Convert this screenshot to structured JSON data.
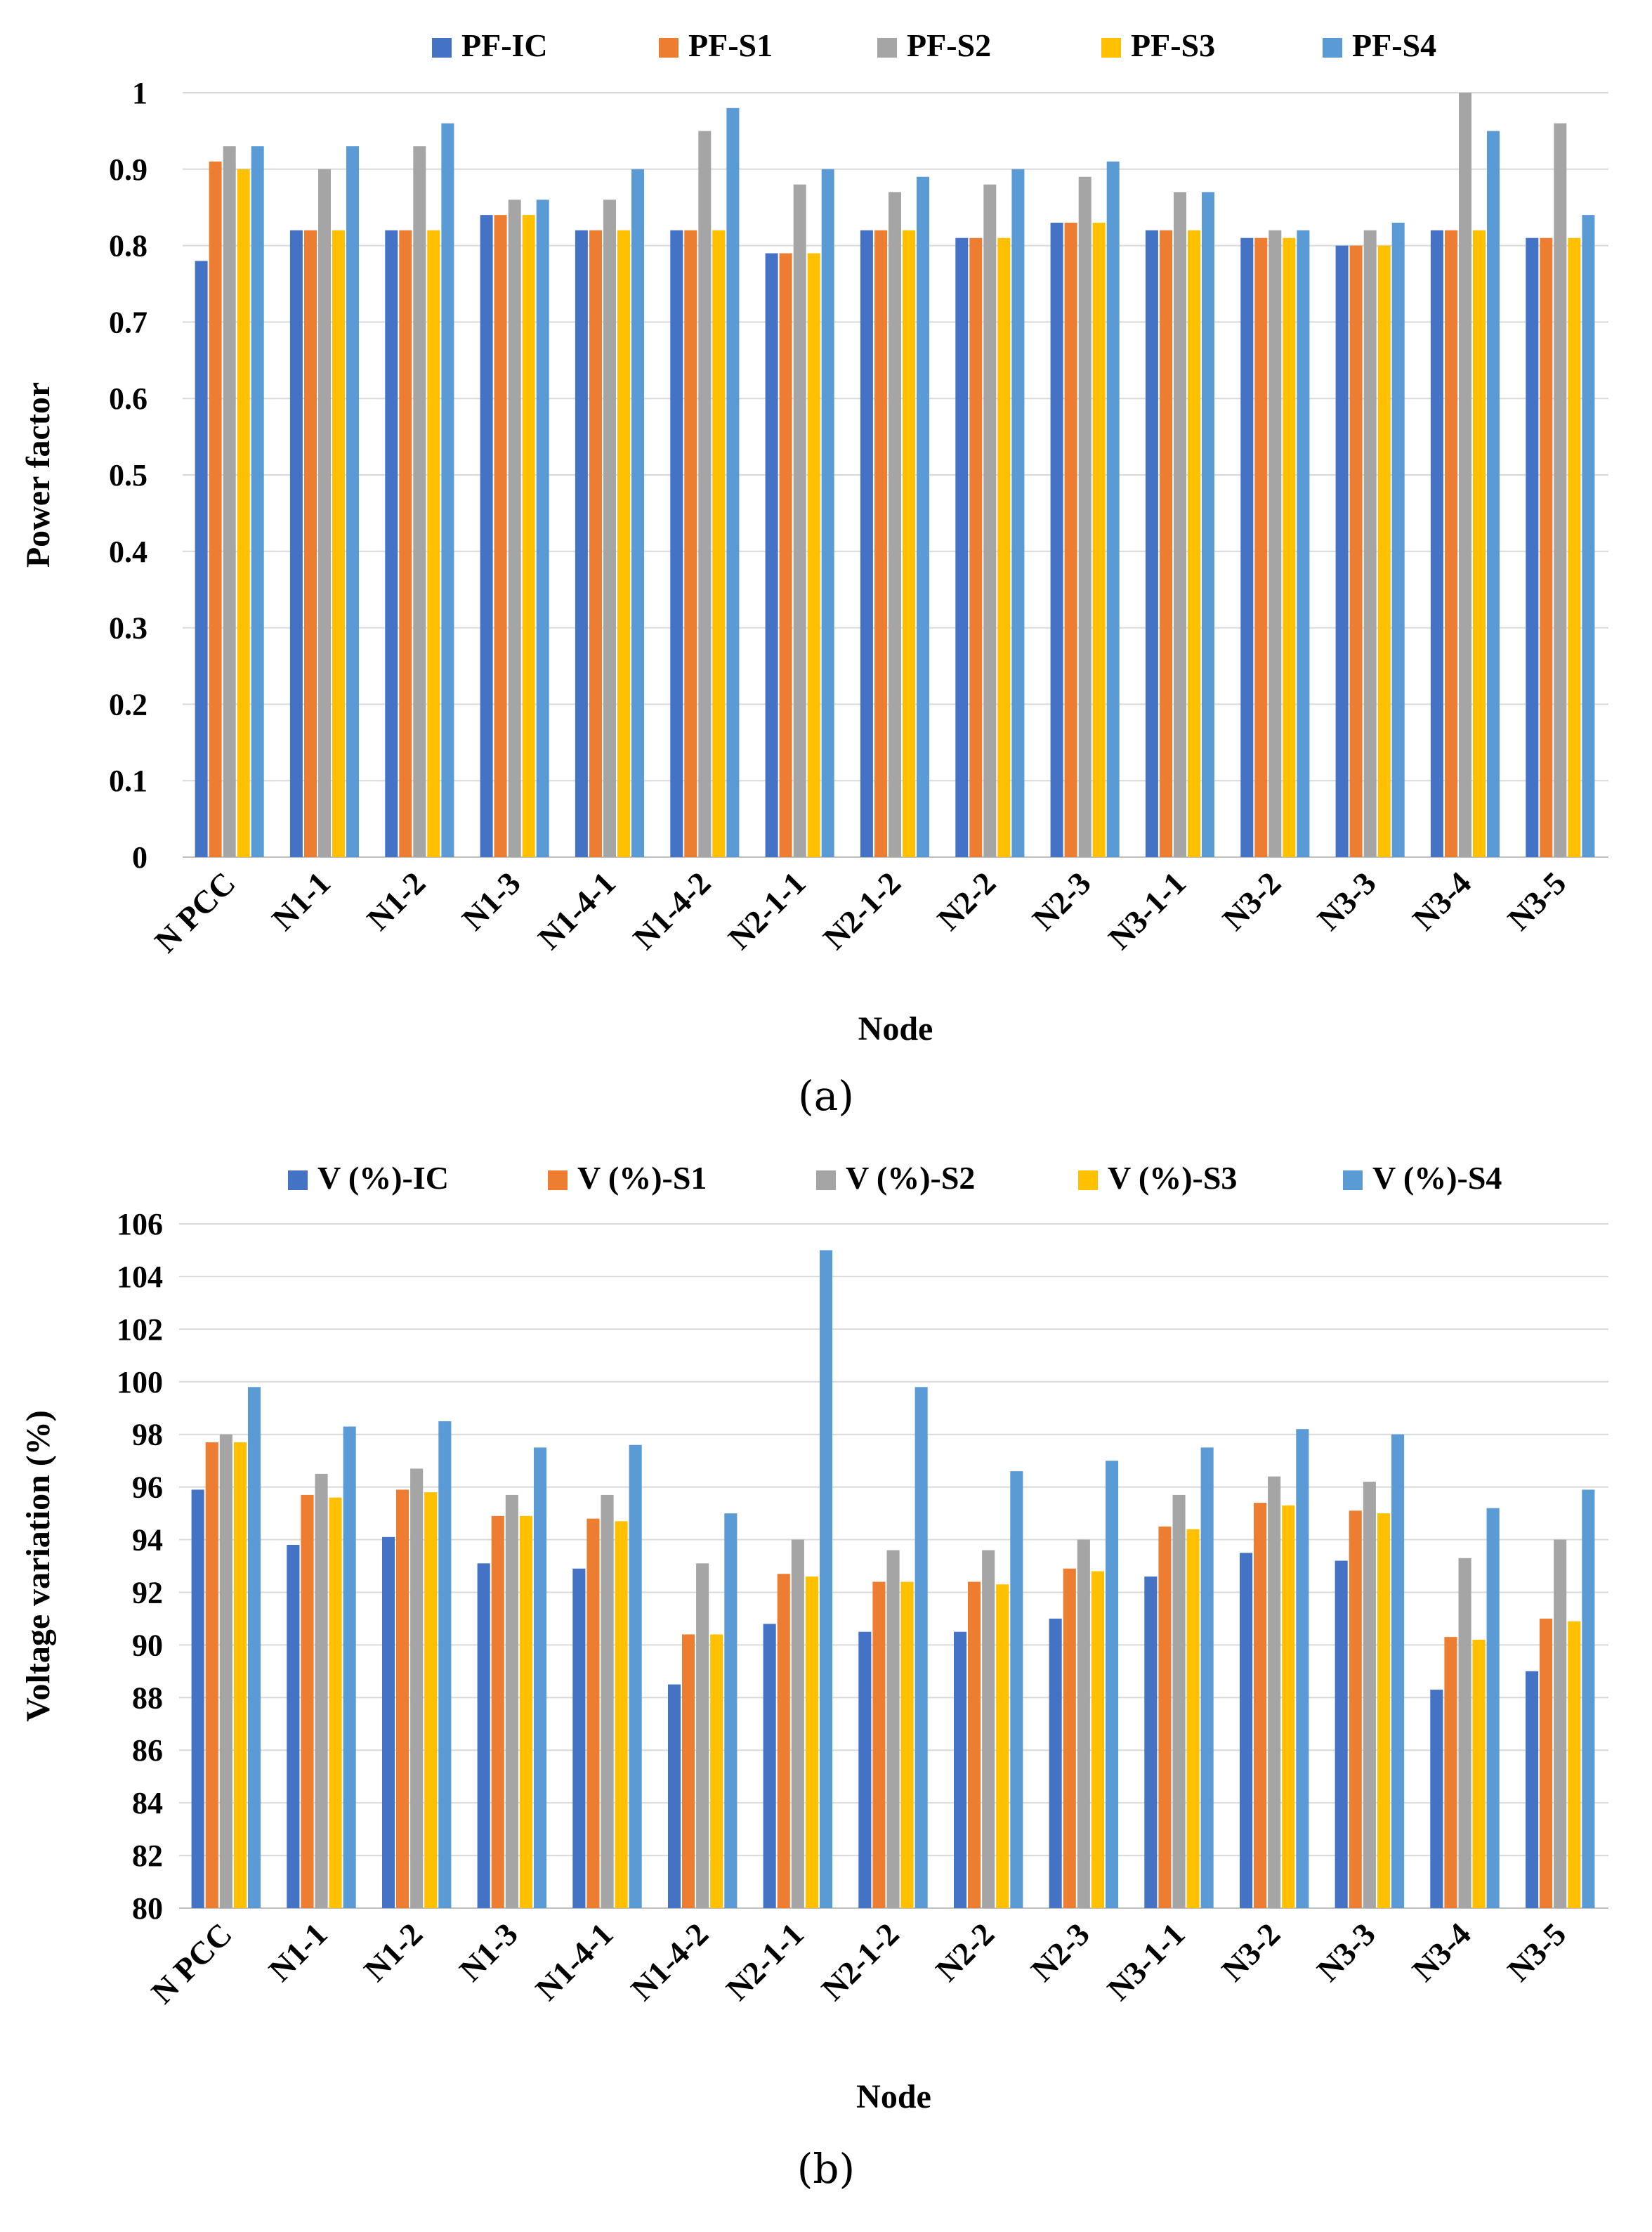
{
  "colors": [
    "#4472C4",
    "#ED7D31",
    "#A5A5A5",
    "#FFC000",
    "#5B9BD5"
  ],
  "chart_data": [
    {
      "type": "bar",
      "panel_label": "(a)",
      "xlabel": "Node",
      "ylabel": "Power factor",
      "ylim": [
        0,
        1
      ],
      "ytick_step": 0.1,
      "yticks": [
        "0",
        "0.1",
        "0.2",
        "0.3",
        "0.4",
        "0.5",
        "0.6",
        "0.7",
        "0.8",
        "0.9",
        "1"
      ],
      "grid": true,
      "legend_position": "top",
      "categories": [
        "N PCC",
        "N1-1",
        "N1-2",
        "N1-3",
        "N1-4-1",
        "N1-4-2",
        "N2-1-1",
        "N2-1-2",
        "N2-2",
        "N2-3",
        "N3-1-1",
        "N3-2",
        "N3-3",
        "N3-4",
        "N3-5"
      ],
      "series": [
        {
          "name": "PF-IC",
          "values": [
            0.78,
            0.82,
            0.82,
            0.84,
            0.82,
            0.82,
            0.79,
            0.82,
            0.81,
            0.83,
            0.82,
            0.81,
            0.8,
            0.82,
            0.81
          ]
        },
        {
          "name": "PF-S1",
          "values": [
            0.91,
            0.82,
            0.82,
            0.84,
            0.82,
            0.82,
            0.79,
            0.82,
            0.81,
            0.83,
            0.82,
            0.81,
            0.8,
            0.82,
            0.81
          ]
        },
        {
          "name": "PF-S2",
          "values": [
            0.93,
            0.9,
            0.93,
            0.86,
            0.86,
            0.95,
            0.88,
            0.87,
            0.88,
            0.89,
            0.87,
            0.82,
            0.82,
            1.0,
            0.96
          ]
        },
        {
          "name": "PF-S3",
          "values": [
            0.9,
            0.82,
            0.82,
            0.84,
            0.82,
            0.82,
            0.79,
            0.82,
            0.81,
            0.83,
            0.82,
            0.81,
            0.8,
            0.82,
            0.81
          ]
        },
        {
          "name": "PF-S4",
          "values": [
            0.93,
            0.93,
            0.96,
            0.86,
            0.9,
            0.98,
            0.9,
            0.89,
            0.9,
            0.91,
            0.87,
            0.82,
            0.83,
            0.95,
            0.84
          ]
        }
      ]
    },
    {
      "type": "bar",
      "panel_label": "(b)",
      "xlabel": "Node",
      "ylabel": "Voltage variation (%)",
      "ylim": [
        80,
        106
      ],
      "ytick_step": 2,
      "yticks": [
        "80",
        "82",
        "84",
        "86",
        "88",
        "90",
        "92",
        "94",
        "96",
        "98",
        "100",
        "102",
        "104",
        "106"
      ],
      "grid": true,
      "legend_position": "top",
      "categories": [
        "N PCC",
        "N1-1",
        "N1-2",
        "N1-3",
        "N1-4-1",
        "N1-4-2",
        "N2-1-1",
        "N2-1-2",
        "N2-2",
        "N2-3",
        "N3-1-1",
        "N3-2",
        "N3-3",
        "N3-4",
        "N3-5"
      ],
      "series": [
        {
          "name": "V (%)-IC",
          "values": [
            95.9,
            93.8,
            94.1,
            93.1,
            92.9,
            88.5,
            90.8,
            90.5,
            90.5,
            91.0,
            92.6,
            93.5,
            93.2,
            88.3,
            89.0
          ]
        },
        {
          "name": "V (%)-S1",
          "values": [
            97.7,
            95.7,
            95.9,
            94.9,
            94.8,
            90.4,
            92.7,
            92.4,
            92.4,
            92.9,
            94.5,
            95.4,
            95.1,
            90.3,
            91.0
          ]
        },
        {
          "name": "V (%)-S2",
          "values": [
            98.0,
            96.5,
            96.7,
            95.7,
            95.7,
            93.1,
            94.0,
            93.6,
            93.6,
            94.0,
            95.7,
            96.4,
            96.2,
            93.3,
            94.0
          ]
        },
        {
          "name": "V (%)-S3",
          "values": [
            97.7,
            95.6,
            95.8,
            94.9,
            94.7,
            90.4,
            92.6,
            92.4,
            92.3,
            92.8,
            94.4,
            95.3,
            95.0,
            90.2,
            90.9
          ]
        },
        {
          "name": "V (%)-S4",
          "values": [
            99.8,
            98.3,
            98.5,
            97.5,
            97.6,
            95.0,
            105.0,
            99.8,
            96.6,
            97.0,
            97.5,
            98.2,
            98.0,
            95.2,
            95.9
          ]
        }
      ]
    }
  ]
}
